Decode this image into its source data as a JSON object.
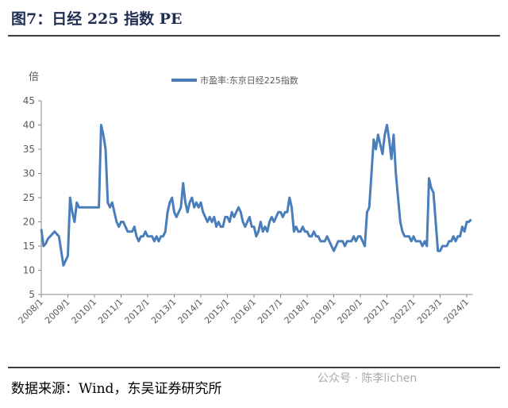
{
  "header": {
    "title": "图7：日经 225 指数 PE"
  },
  "chart_data": {
    "type": "line",
    "ylabel": "倍",
    "x": [
      "2008/1",
      "2008/2",
      "2008/3",
      "2008/4",
      "2008/5",
      "2008/6",
      "2008/7",
      "2008/8",
      "2008/9",
      "2008/10",
      "2008/11",
      "2008/12",
      "2009/1",
      "2009/2",
      "2009/3",
      "2009/4",
      "2009/5",
      "2009/6",
      "2009/7",
      "2009/8",
      "2009/9",
      "2009/10",
      "2009/11",
      "2009/12",
      "2010/1",
      "2010/2",
      "2010/3",
      "2010/4",
      "2010/5",
      "2010/6",
      "2010/7",
      "2010/8",
      "2010/9",
      "2010/10",
      "2010/11",
      "2010/12",
      "2011/1",
      "2011/2",
      "2011/3",
      "2011/4",
      "2011/5",
      "2011/6",
      "2011/7",
      "2011/8",
      "2011/9",
      "2011/10",
      "2011/11",
      "2011/12",
      "2012/1",
      "2012/2",
      "2012/3",
      "2012/4",
      "2012/5",
      "2012/6",
      "2012/7",
      "2012/8",
      "2012/9",
      "2012/10",
      "2012/11",
      "2012/12",
      "2013/1",
      "2013/2",
      "2013/3",
      "2013/4",
      "2013/5",
      "2013/6",
      "2013/7",
      "2013/8",
      "2013/9",
      "2013/10",
      "2013/11",
      "2013/12",
      "2014/1",
      "2014/2",
      "2014/3",
      "2014/4",
      "2014/5",
      "2014/6",
      "2014/7",
      "2014/8",
      "2014/9",
      "2014/10",
      "2014/11",
      "2014/12",
      "2015/1",
      "2015/2",
      "2015/3",
      "2015/4",
      "2015/5",
      "2015/6",
      "2015/7",
      "2015/8",
      "2015/9",
      "2015/10",
      "2015/11",
      "2015/12",
      "2016/1",
      "2016/2",
      "2016/3",
      "2016/4",
      "2016/5",
      "2016/6",
      "2016/7",
      "2016/8",
      "2016/9",
      "2016/10",
      "2016/11",
      "2016/12",
      "2017/1",
      "2017/2",
      "2017/3",
      "2017/4",
      "2017/5",
      "2017/6",
      "2017/7",
      "2017/8",
      "2017/9",
      "2017/10",
      "2017/11",
      "2017/12",
      "2018/1",
      "2018/2",
      "2018/3",
      "2018/4",
      "2018/5",
      "2018/6",
      "2018/7",
      "2018/8",
      "2018/9",
      "2018/10",
      "2018/11",
      "2018/12",
      "2019/1",
      "2019/2",
      "2019/3",
      "2019/4",
      "2019/5",
      "2019/6",
      "2019/7",
      "2019/8",
      "2019/9",
      "2019/10",
      "2019/11",
      "2019/12",
      "2020/1",
      "2020/2",
      "2020/3",
      "2020/4",
      "2020/5",
      "2020/6",
      "2020/7",
      "2020/8",
      "2020/9",
      "2020/10",
      "2020/11",
      "2020/12",
      "2021/1",
      "2021/2",
      "2021/3",
      "2021/4",
      "2021/5",
      "2021/6",
      "2021/7",
      "2021/8",
      "2021/9",
      "2021/10",
      "2021/11",
      "2021/12",
      "2022/1",
      "2022/2",
      "2022/3",
      "2022/4",
      "2022/5",
      "2022/6",
      "2022/7",
      "2022/8",
      "2022/9",
      "2022/10",
      "2022/11",
      "2022/12",
      "2023/1",
      "2023/2",
      "2023/3",
      "2023/4",
      "2023/5",
      "2023/6",
      "2023/7",
      "2023/8",
      "2023/9",
      "2023/10",
      "2023/11",
      "2023/12",
      "2024/1",
      "2024/2",
      "2024/3"
    ],
    "series": [
      {
        "name": "市盈率:东京日经225指数",
        "color": "#4a7ebb",
        "values": [
          18.5,
          15,
          15.5,
          16.5,
          17,
          17.5,
          18,
          17.5,
          17,
          14,
          11,
          12,
          13,
          25,
          22,
          20,
          24,
          23,
          23,
          23,
          23,
          23,
          23,
          23,
          23,
          23,
          23,
          40,
          38,
          35,
          24,
          23,
          24,
          22,
          20,
          19,
          20,
          20,
          19,
          18,
          18,
          18,
          19,
          17,
          16,
          17,
          17,
          18,
          17,
          17,
          17,
          16,
          17,
          16,
          17,
          17,
          18,
          22,
          24,
          25,
          22,
          21,
          22,
          23,
          28,
          24,
          22,
          24,
          25,
          23,
          24,
          23,
          24,
          22,
          21,
          20,
          21,
          20,
          21,
          19,
          20,
          19,
          19,
          21,
          21,
          20,
          22,
          21,
          22,
          23,
          22,
          20,
          19,
          20,
          21,
          19,
          19,
          17,
          18,
          20,
          18,
          19,
          18,
          20,
          21,
          20,
          21,
          22,
          22,
          21,
          22,
          22,
          25,
          23,
          18,
          19,
          18,
          18,
          19,
          18,
          18,
          17,
          17,
          18,
          17,
          17,
          16,
          16,
          16,
          17,
          16,
          15,
          14,
          15,
          16,
          16,
          16,
          15,
          16,
          16,
          16,
          17,
          16,
          17,
          17,
          16,
          15,
          22,
          23,
          30,
          37,
          35,
          38,
          36,
          34,
          38,
          40,
          37,
          33,
          38,
          30,
          25,
          20,
          18,
          17,
          17,
          17,
          16,
          17,
          16,
          16,
          16,
          15,
          16,
          15,
          29,
          27,
          26,
          20,
          14,
          14,
          15,
          15,
          15,
          16,
          16,
          17,
          16,
          17,
          17,
          19,
          18,
          20,
          20,
          20.5
        ]
      }
    ],
    "xticks": [
      "2008/1",
      "2009/1",
      "2010/1",
      "2011/1",
      "2012/1",
      "2013/1",
      "2014/1",
      "2015/1",
      "2016/1",
      "2017/1",
      "2018/1",
      "2019/1",
      "2020/1",
      "2021/1",
      "2022/1",
      "2023/1",
      "2024/1"
    ],
    "ylim": [
      5,
      45
    ],
    "yticks": [
      5,
      10,
      15,
      20,
      25,
      30,
      35,
      40,
      45
    ],
    "legend": "top"
  },
  "footer": {
    "source": "数据来源：Wind，东吴证券研究所",
    "watermark": "公众号 · 陈李lichen"
  }
}
